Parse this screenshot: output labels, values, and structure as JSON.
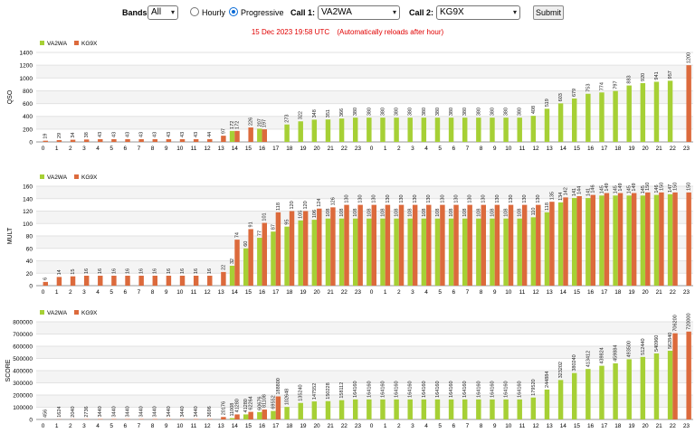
{
  "controls": {
    "bands_label": "Bands:",
    "bands_value": "All",
    "hourly_label": "Hourly",
    "progressive_label": "Progressive",
    "progressive_selected": true,
    "call1_label": "Call 1:",
    "call1_value": "VA2WA",
    "call2_label": "Call 2:",
    "call2_value": "KG9X",
    "submit_label": "Submit"
  },
  "status": {
    "timestamp": "15 Dec 2023 19:58 UTC",
    "note": "(Automatically reloads after hour)"
  },
  "colors": {
    "series1": "#a6d035",
    "series2": "#dc6a3c",
    "grid": "#e2e2e2",
    "band": "#f4f4f4"
  },
  "chart_data": [
    {
      "type": "bar",
      "ylabel": "QSO",
      "ylim": [
        0,
        1400
      ],
      "yticks": [
        0,
        200,
        400,
        600,
        800,
        1000,
        1200,
        1400
      ],
      "categories": [
        "0",
        "1",
        "2",
        "3",
        "4",
        "5",
        "6",
        "7",
        "8",
        "9",
        "10",
        "11",
        "12",
        "13",
        "14",
        "15",
        "16",
        "17",
        "18",
        "19",
        "20",
        "21",
        "22",
        "23",
        "0",
        "1",
        "2",
        "3",
        "4",
        "5",
        "6",
        "7",
        "8",
        "9",
        "10",
        "11",
        "12",
        "13",
        "14",
        "15",
        "16",
        "17",
        "18",
        "19",
        "20",
        "21",
        "22",
        "23"
      ],
      "legend_position": "top-left",
      "series": [
        {
          "name": "VA2WA",
          "values": [
            0,
            0,
            0,
            0,
            0,
            0,
            0,
            0,
            0,
            0,
            0,
            0,
            0,
            0,
            172,
            0,
            207,
            0,
            273,
            322,
            348,
            351,
            366,
            380,
            380,
            380,
            380,
            380,
            380,
            380,
            380,
            380,
            380,
            380,
            380,
            380,
            408,
            519,
            603,
            679,
            753,
            774,
            797,
            883,
            920,
            941,
            957,
            0
          ]
        },
        {
          "name": "KG9X",
          "values": [
            19,
            29,
            34,
            38,
            43,
            43,
            43,
            43,
            43,
            43,
            43,
            43,
            44,
            97,
            172,
            226,
            197,
            0,
            0,
            0,
            0,
            0,
            0,
            0,
            0,
            0,
            0,
            0,
            0,
            0,
            0,
            0,
            0,
            0,
            0,
            0,
            0,
            0,
            0,
            0,
            0,
            0,
            0,
            0,
            0,
            0,
            0,
            1200
          ]
        }
      ]
    },
    {
      "type": "bar",
      "ylabel": "MULT",
      "ylim": [
        0,
        160
      ],
      "yticks": [
        0,
        20,
        40,
        60,
        80,
        100,
        120,
        140,
        160
      ],
      "categories": [
        "0",
        "1",
        "2",
        "3",
        "4",
        "5",
        "6",
        "7",
        "8",
        "9",
        "10",
        "11",
        "12",
        "13",
        "14",
        "15",
        "16",
        "17",
        "18",
        "19",
        "20",
        "21",
        "22",
        "23",
        "0",
        "1",
        "2",
        "3",
        "4",
        "5",
        "6",
        "7",
        "8",
        "9",
        "10",
        "11",
        "12",
        "13",
        "14",
        "15",
        "16",
        "17",
        "18",
        "19",
        "20",
        "21",
        "22",
        "23"
      ],
      "legend_position": "top-left",
      "series": [
        {
          "name": "VA2WA",
          "values": [
            0,
            0,
            0,
            0,
            0,
            0,
            0,
            0,
            0,
            0,
            0,
            0,
            0,
            0,
            32,
            60,
            77,
            87,
            95,
            105,
            106,
            108,
            108,
            108,
            108,
            108,
            108,
            108,
            108,
            108,
            108,
            108,
            108,
            108,
            108,
            108,
            110,
            118,
            134,
            141,
            141,
            145,
            145,
            145,
            145,
            146,
            147,
            0
          ]
        },
        {
          "name": "KG9X",
          "values": [
            6,
            14,
            15,
            16,
            16,
            16,
            16,
            16,
            16,
            16,
            16,
            16,
            16,
            22,
            74,
            91,
            101,
            118,
            120,
            120,
            124,
            126,
            130,
            130,
            130,
            130,
            130,
            130,
            130,
            130,
            130,
            130,
            130,
            130,
            130,
            130,
            130,
            135,
            142,
            144,
            146,
            149,
            149,
            149,
            150,
            150,
            150,
            150
          ]
        }
      ]
    },
    {
      "type": "bar",
      "ylabel": "SCORE",
      "ylim": [
        0,
        800000
      ],
      "yticks": [
        0,
        100000,
        200000,
        300000,
        400000,
        500000,
        600000,
        700000,
        800000
      ],
      "categories": [
        "0",
        "1",
        "2",
        "3",
        "4",
        "5",
        "6",
        "7",
        "8",
        "9",
        "10",
        "11",
        "12",
        "13",
        "14",
        "15",
        "16",
        "17",
        "18",
        "19",
        "20",
        "21",
        "22",
        "23",
        "0",
        "1",
        "2",
        "3",
        "4",
        "5",
        "6",
        "7",
        "8",
        "9",
        "10",
        "11",
        "12",
        "13",
        "14",
        "15",
        "16",
        "17",
        "18",
        "19",
        "20",
        "21",
        "22",
        "23"
      ],
      "legend_position": "top-left",
      "series": [
        {
          "name": "VA2WA",
          "values": [
            0,
            0,
            0,
            0,
            0,
            0,
            0,
            0,
            0,
            0,
            0,
            0,
            0,
            0,
            11008,
            41280,
            60676,
            69552,
            102648,
            135240,
            147552,
            150228,
            158112,
            164160,
            164160,
            164160,
            164160,
            164160,
            164160,
            164160,
            164160,
            164160,
            164160,
            164160,
            164160,
            164160,
            179520,
            244884,
            323202,
            380240,
            413412,
            439824,
            459884,
            493500,
            512440,
            540960,
            562840,
            0
          ]
        },
        {
          "name": "KG9X",
          "values": [
            456,
            1624,
            2040,
            2736,
            3440,
            3440,
            3440,
            3440,
            3440,
            3440,
            3440,
            3440,
            3696,
            20176,
            41280,
            62264,
            81108,
            188800,
            0,
            0,
            0,
            0,
            0,
            0,
            0,
            0,
            0,
            0,
            0,
            0,
            0,
            0,
            0,
            0,
            0,
            0,
            0,
            0,
            0,
            0,
            0,
            0,
            0,
            0,
            0,
            0,
            706200,
            720000
          ]
        }
      ]
    }
  ]
}
